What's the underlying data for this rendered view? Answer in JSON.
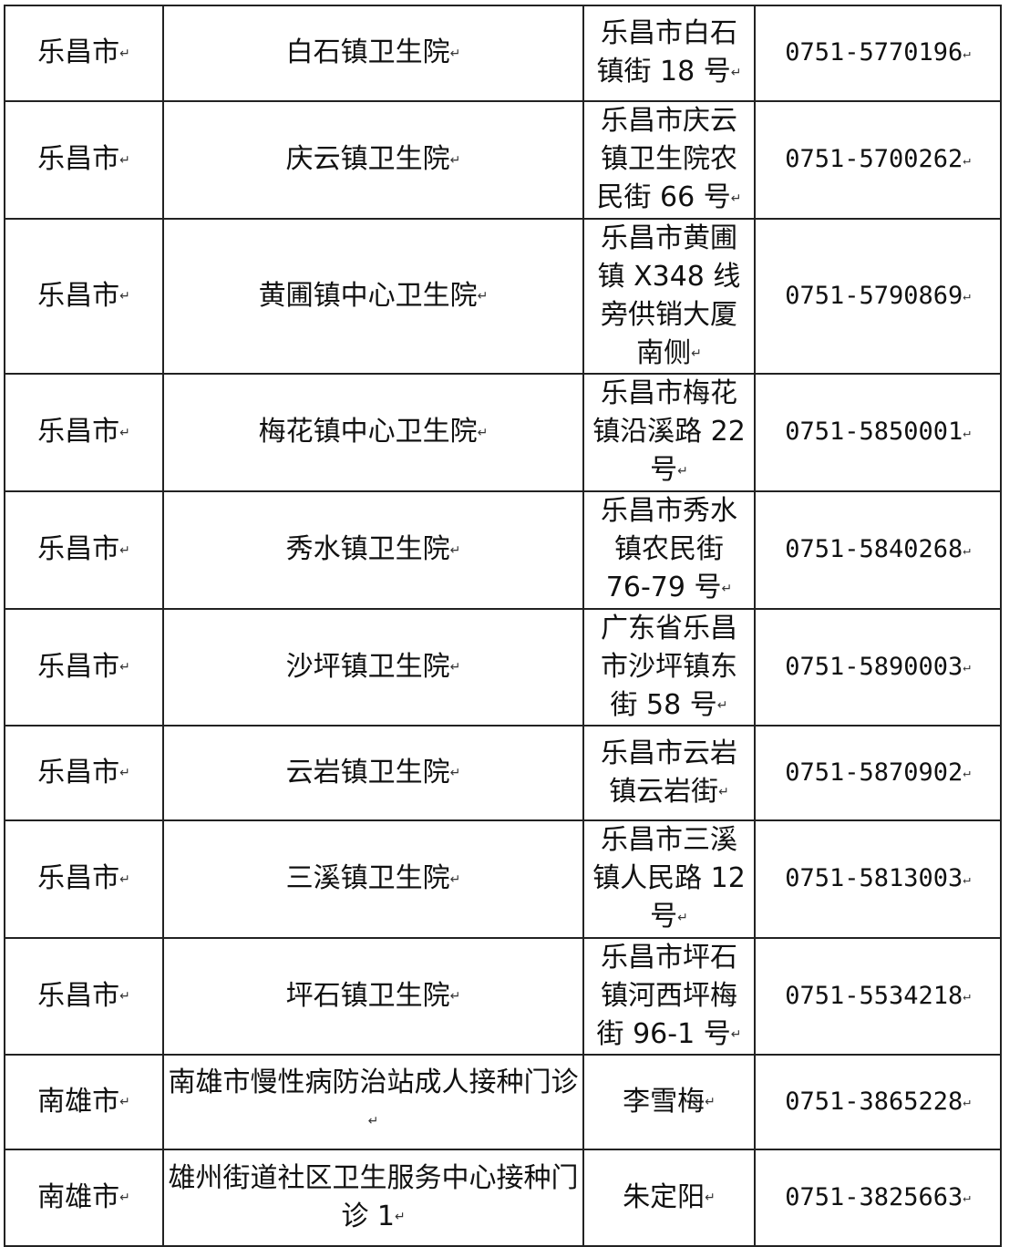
{
  "rows": [
    {
      "city": "乐昌市",
      "name": "白石镇卫生院",
      "address": "乐昌市白石镇街 18 号",
      "phone": "0751-5770196"
    },
    {
      "city": "乐昌市",
      "name": "庆云镇卫生院",
      "address": "乐昌市庆云镇卫生院农民街 66 号",
      "phone": "0751-5700262"
    },
    {
      "city": "乐昌市",
      "name": "黄圃镇中心卫生院",
      "address": "乐昌市黄圃镇 X348 线旁供销大厦南侧",
      "phone": "0751-5790869"
    },
    {
      "city": "乐昌市",
      "name": "梅花镇中心卫生院",
      "address": "乐昌市梅花镇沿溪路 22 号",
      "phone": "0751-5850001"
    },
    {
      "city": "乐昌市",
      "name": "秀水镇卫生院",
      "address": "乐昌市秀水镇农民街 76-79 号",
      "phone": "0751-5840268"
    },
    {
      "city": "乐昌市",
      "name": "沙坪镇卫生院",
      "address": "广东省乐昌市沙坪镇东街 58 号",
      "phone": "0751-5890003"
    },
    {
      "city": "乐昌市",
      "name": "云岩镇卫生院",
      "address": "乐昌市云岩镇云岩街",
      "phone": "0751-5870902"
    },
    {
      "city": "乐昌市",
      "name": "三溪镇卫生院",
      "address": "乐昌市三溪镇人民路 12 号",
      "phone": "0751-5813003"
    },
    {
      "city": "乐昌市",
      "name": "坪石镇卫生院",
      "address": "乐昌市坪石镇河西坪梅街 96-1 号",
      "phone": "0751-5534218"
    },
    {
      "city": "南雄市",
      "name": "南雄市慢性病防治站成人接种门诊",
      "address": "李雪梅",
      "phone": "0751-3865228"
    },
    {
      "city": "南雄市",
      "name": "雄州街道社区卫生服务中心接种门诊 1",
      "address": "朱定阳",
      "phone": "0751-3825663"
    }
  ]
}
